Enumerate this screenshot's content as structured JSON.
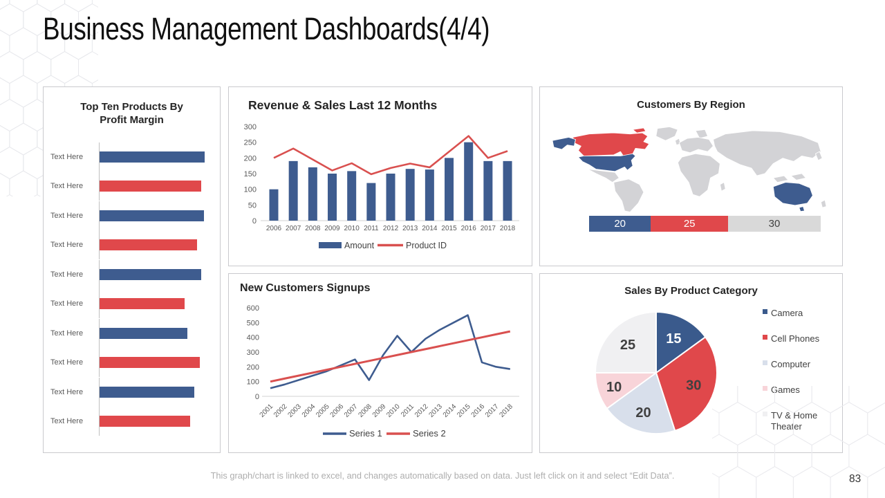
{
  "slide": {
    "title": "Business Management Dashboards(4/4)",
    "footer": "This graph/chart is linked to excel, and changes automatically based on data. Just left click on it and select “Edit Data”.",
    "page_number": "83"
  },
  "colors": {
    "blue": "#3e5c8f",
    "red": "#e0484b",
    "map_base_gray": "#d3d3d6",
    "segment_gray": "#d9d9d9",
    "axis_text": "#595959",
    "legend_text": "#404040"
  },
  "chart_data": [
    {
      "id": "profit_margin",
      "type": "bar",
      "orientation": "horizontal",
      "title": "Top Ten Products By Profit Margin",
      "categories": [
        "Text Here",
        "Text Here",
        "Text Here",
        "Text Here",
        "Text Here",
        "Text Here",
        "Text Here",
        "Text Here",
        "Text Here",
        "Text Here"
      ],
      "values": [
        114,
        110,
        113,
        106,
        110,
        92,
        95,
        109,
        103,
        98
      ],
      "xlim": [
        0,
        120
      ],
      "bar_colors_alternate": [
        "#3e5c8f",
        "#e0484b"
      ],
      "grid": false
    },
    {
      "id": "revenue_sales",
      "type": "bar",
      "subtype": "combo-bar-line",
      "title": "Revenue & Sales Last 12 Months",
      "categories": [
        "2006",
        "2007",
        "2008",
        "2009",
        "2010",
        "2011",
        "2012",
        "2013",
        "2014",
        "2015",
        "2016",
        "2017",
        "2018"
      ],
      "series": [
        {
          "name": "Amount",
          "mark": "bar",
          "color": "#3e5c8f",
          "values": [
            100,
            190,
            170,
            150,
            158,
            120,
            150,
            165,
            163,
            200,
            250,
            190,
            190
          ]
        },
        {
          "name": "Product ID",
          "mark": "line",
          "color": "#d9504f",
          "values": [
            200,
            230,
            195,
            160,
            183,
            148,
            168,
            182,
            170,
            220,
            270,
            200,
            222
          ]
        }
      ],
      "ylim": [
        0,
        300
      ],
      "ytick_step": 50,
      "grid": false,
      "legend_position": "bottom"
    },
    {
      "id": "customers_region",
      "type": "bar",
      "subtype": "map-with-stacked-bar",
      "title": "Customers By Region",
      "highlighted_regions": {
        "blue": [
          "United States",
          "Alaska",
          "Australia"
        ],
        "red": [
          "Canada"
        ]
      },
      "segments": [
        {
          "label": "20",
          "value": 20,
          "color": "#3e5c8f",
          "label_color": "#ffffff"
        },
        {
          "label": "25",
          "value": 25,
          "color": "#e0484b",
          "label_color": "#ffffff"
        },
        {
          "label": "30",
          "value": 30,
          "color": "#d9d9d9",
          "label_color": "#404040"
        }
      ]
    },
    {
      "id": "new_customers",
      "type": "line",
      "title": "New Customers Signups",
      "categories": [
        "2001",
        "2002",
        "2003",
        "2004",
        "2005",
        "2006",
        "2007",
        "2008",
        "2009",
        "2010",
        "2011",
        "2012",
        "2013",
        "2014",
        "2015",
        "2016",
        "2017",
        "2018"
      ],
      "series": [
        {
          "name": "Series 1",
          "color": "#3e5c8f",
          "values": [
            55,
            80,
            110,
            140,
            170,
            210,
            250,
            110,
            280,
            410,
            300,
            390,
            450,
            500,
            550,
            230,
            200,
            185
          ]
        },
        {
          "name": "Series 2",
          "color": "#d9504f",
          "values": [
            100,
            120,
            140,
            160,
            180,
            200,
            220,
            240,
            260,
            280,
            300,
            320,
            340,
            360,
            380,
            400,
            420,
            440
          ]
        }
      ],
      "ylim": [
        0,
        600
      ],
      "ytick_step": 100,
      "grid": false,
      "legend_position": "bottom",
      "xtick_rotation": -45
    },
    {
      "id": "sales_category",
      "type": "pie",
      "title": "Sales By Product Category",
      "labels": [
        "Camera",
        "Cell Phones",
        "Computer",
        "Games",
        "TV & Home Theater"
      ],
      "values": [
        15,
        30,
        20,
        10,
        25
      ],
      "slice_colors": [
        "#3a5a8c",
        "#e0484b",
        "#d8dfeb",
        "#f8d4d9",
        "#f0f0f2"
      ],
      "data_label_colors": [
        "#ffffff",
        "#404040",
        "#404040",
        "#404040",
        "#404040"
      ],
      "start_angle_deg": 0,
      "direction": "clockwise",
      "legend_position": "right"
    }
  ]
}
